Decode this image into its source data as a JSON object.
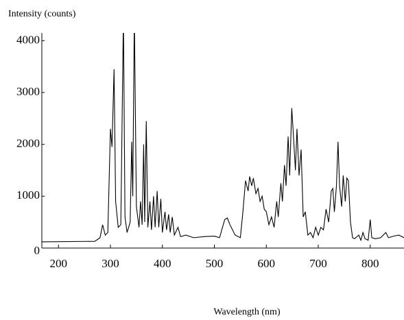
{
  "chart_data": {
    "type": "line",
    "y_label": "Intensity (counts)",
    "x_label": "Wavelength (nm)",
    "xlim": [
      168,
      865
    ],
    "ylim": [
      0,
      4150
    ],
    "xticks": [
      200,
      300,
      400,
      500,
      600,
      700,
      800
    ],
    "yticks": [
      0,
      1000,
      2000,
      3000,
      4000
    ],
    "x": [
      168,
      270,
      280,
      285,
      290,
      295,
      300,
      303,
      307,
      310,
      315,
      320,
      325,
      328,
      332,
      338,
      341,
      343,
      346,
      350,
      355,
      358,
      361,
      364,
      366,
      369,
      372,
      376,
      379,
      383,
      386,
      390,
      393,
      397,
      400,
      405,
      408,
      412,
      415,
      419,
      423,
      430,
      435,
      445,
      460,
      480,
      500,
      510,
      520,
      525,
      530,
      540,
      550,
      555,
      560,
      565,
      568,
      572,
      575,
      580,
      584,
      588,
      592,
      596,
      600,
      605,
      610,
      615,
      620,
      623,
      628,
      631,
      635,
      638,
      642,
      645,
      649,
      652,
      656,
      659,
      663,
      667,
      671,
      675,
      680,
      685,
      690,
      695,
      700,
      705,
      710,
      715,
      720,
      725,
      728,
      731,
      735,
      738,
      741,
      745,
      748,
      752,
      755,
      758,
      762,
      766,
      770,
      778,
      782,
      786,
      790,
      796,
      800,
      803,
      810,
      820,
      830,
      835,
      845,
      855,
      865
    ],
    "series": [
      {
        "color": "#000000",
        "values": [
          120,
          130,
          200,
          450,
          250,
          300,
          2300,
          1950,
          3450,
          900,
          400,
          450,
          4500,
          600,
          300,
          500,
          2050,
          1000,
          4500,
          800,
          400,
          900,
          450,
          2000,
          500,
          2450,
          400,
          900,
          350,
          1000,
          400,
          1100,
          400,
          950,
          300,
          700,
          350,
          650,
          300,
          600,
          250,
          400,
          220,
          250,
          200,
          220,
          230,
          200,
          550,
          580,
          450,
          250,
          200,
          700,
          1300,
          1100,
          1380,
          1200,
          1350,
          1050,
          1150,
          900,
          1000,
          750,
          700,
          450,
          600,
          400,
          900,
          600,
          1250,
          900,
          1600,
          1200,
          2150,
          1400,
          2700,
          2200,
          1500,
          2300,
          1400,
          1900,
          600,
          700,
          250,
          300,
          200,
          400,
          250,
          400,
          350,
          750,
          500,
          1100,
          1150,
          700,
          1200,
          2050,
          1200,
          800,
          1400,
          900,
          1350,
          1300,
          500,
          200,
          180,
          250,
          150,
          300,
          180,
          150,
          550,
          200,
          180,
          200,
          300,
          200,
          230,
          250,
          200
        ]
      }
    ]
  }
}
